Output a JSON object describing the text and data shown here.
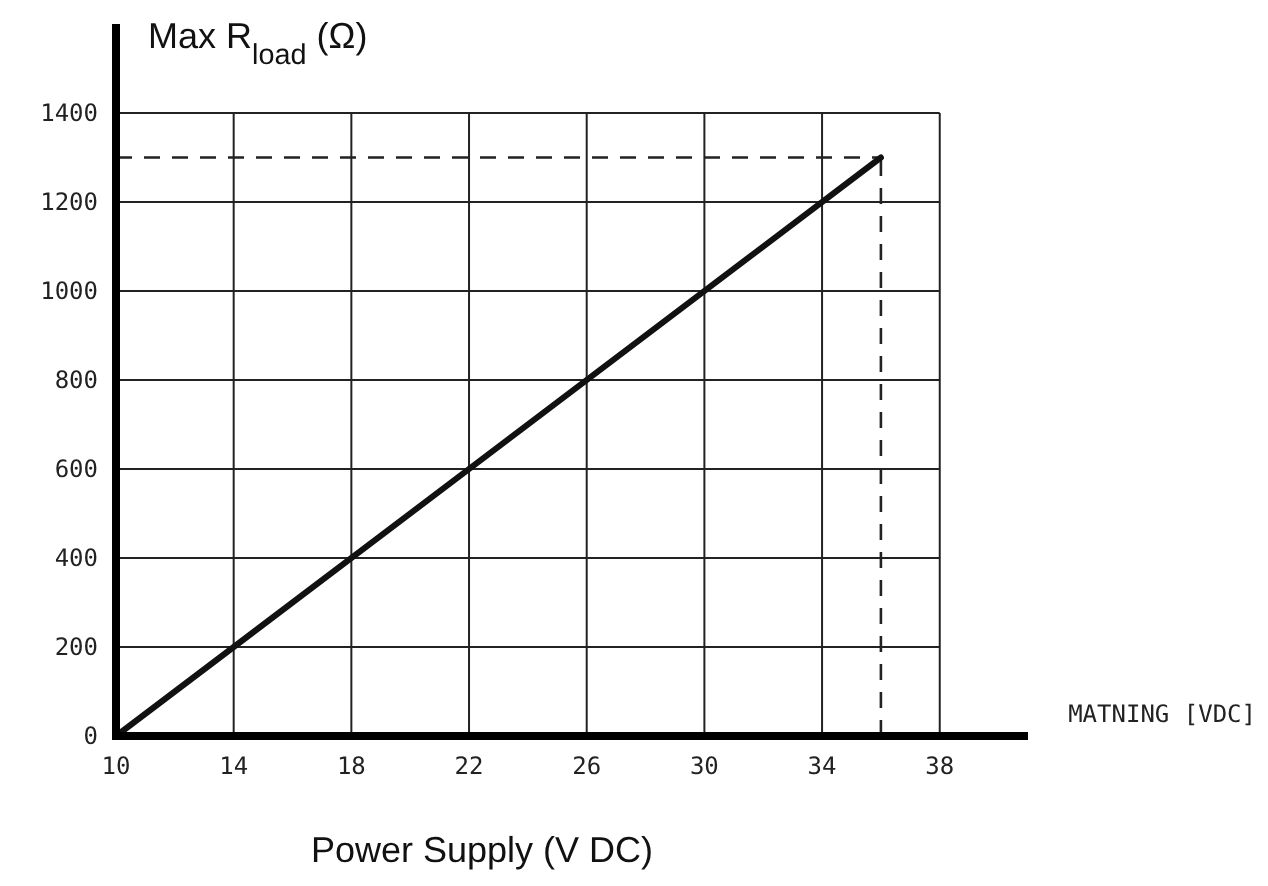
{
  "chart_data": {
    "type": "line",
    "xlabel": "Power Supply (V DC)",
    "ylabel": "Max R$_{load}$ (Ω)",
    "annotations": [
      "MATNING [VDC]"
    ],
    "x": [
      10,
      36
    ],
    "series": [
      {
        "color": "#111111",
        "values": [
          0,
          1300
        ]
      }
    ],
    "xlim": [
      10,
      41
    ],
    "xticks": [
      10,
      14,
      18,
      22,
      26,
      30,
      34,
      38
    ],
    "ylim": [
      0,
      1600
    ],
    "yticks": [
      0,
      200,
      400,
      600,
      800,
      1000,
      1200,
      1400
    ],
    "grid": true,
    "ref_lines": [
      {
        "axis": "y",
        "value": 1300,
        "line_style": "dashed"
      },
      {
        "axis": "x",
        "value": 36,
        "line_style": "dashed"
      }
    ],
    "line_style": "solid",
    "marker": "none"
  }
}
